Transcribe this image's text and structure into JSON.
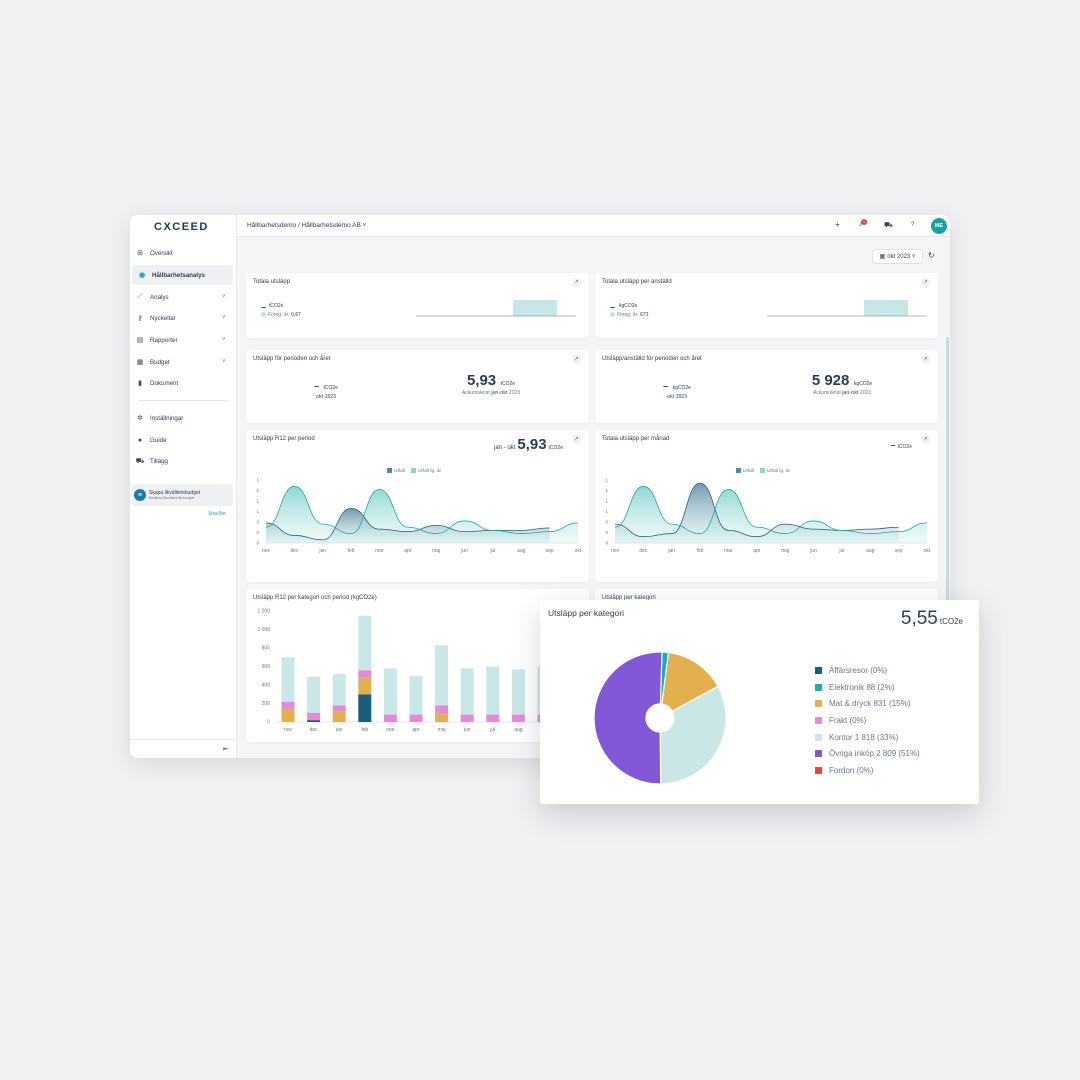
{
  "app": {
    "logo": "CXCEED",
    "breadcrumb": "Hållbarhetsdemo /  Hållbarhetsdemo AB ˅",
    "avatar": "ME",
    "notification_count": "1",
    "date_filter": "okt 2023 ˅"
  },
  "sidebar": {
    "items": [
      {
        "label": "Översikt",
        "icon": "grid-icon"
      },
      {
        "label": "Hållbarhetsanalys",
        "icon": "leaf-icon"
      },
      {
        "label": "Analys",
        "icon": "chart-line-icon"
      },
      {
        "label": "Nyckeltal",
        "icon": "key-icon"
      },
      {
        "label": "Rapporter",
        "icon": "report-icon"
      },
      {
        "label": "Budget",
        "icon": "budget-icon"
      },
      {
        "label": "Dokument",
        "icon": "document-icon"
      },
      {
        "label": "Inställningar",
        "icon": "gear-icon"
      },
      {
        "label": "Guide",
        "icon": "bulb-icon"
      },
      {
        "label": "Tillägg",
        "icon": "cart-icon"
      }
    ],
    "promo_title": "Skapa likviditetsbudget",
    "promo_subtitle": "Beräkna likviditet från budget",
    "more_link": "Visa fler"
  },
  "cards": {
    "total": {
      "title": "Totala utsläpp",
      "value": "–",
      "unit": "tCO2e",
      "prev_label": "Föreg. år:",
      "prev_value": "0,67"
    },
    "per_employee": {
      "title": "Totala utsläpp per anställd",
      "value": "–",
      "unit": "kgCO2e",
      "prev_label": "Föreg. år:",
      "prev_value": "673"
    },
    "period_year": {
      "title": "Utsläpp för perioden och året",
      "left_value": "–",
      "left_unit": "tCO2e",
      "left_label": "okt 2023",
      "right_value": "5,93",
      "right_unit": "tCO2e",
      "right_label_pre": "Ackumulerat",
      "right_label_bold": "jan-okt",
      "right_label_year": "2023"
    },
    "period_year_emp": {
      "title": "Utsläpp/anställd för perioden och året",
      "left_value": "–",
      "left_unit": "kgCO2e",
      "left_label": "okt 2023",
      "right_value": "5 928",
      "right_unit": "kgCO2e",
      "right_label_pre": "Ackumulerat",
      "right_label_bold": "jan-okt",
      "right_label_year": "2023"
    },
    "r12": {
      "title": "Utsläpp R12 per period",
      "range": "jan - okt",
      "value": "5,93",
      "unit": "tCO2e"
    },
    "monthly": {
      "title": "Totala utsläpp per månad",
      "value": "–",
      "unit": "tCO2e"
    },
    "bar": {
      "title": "Utsläpp R12 per kategori och period (kgCO2e)"
    },
    "cat_small": {
      "title": "Utsläpp per kategori"
    }
  },
  "colors": {
    "utfall": "#4f8aa8",
    "utfall_fg": "#8fd4d0",
    "accent": "#16a3a3"
  },
  "chart_data": [
    {
      "type": "area",
      "title": "Utsläpp R12 per period",
      "categories": [
        "nov",
        "dec",
        "jan",
        "feb",
        "mar",
        "apr",
        "maj",
        "jun",
        "jul",
        "aug",
        "sep",
        "okt"
      ],
      "yticks": [
        "0",
        "0",
        "0",
        "1",
        "1",
        "1",
        "1"
      ],
      "legend": [
        "Utfall",
        "Utfall fg. år"
      ],
      "legend_position": "top-center"
    },
    {
      "type": "area",
      "title": "Totala utsläpp per månad",
      "categories": [
        "nov",
        "dec",
        "jan",
        "feb",
        "mar",
        "apr",
        "maj",
        "jun",
        "jul",
        "aug",
        "sep",
        "okt"
      ],
      "yticks": [
        "0",
        "0",
        "0",
        "1",
        "1",
        "1",
        "1"
      ],
      "legend": [
        "Utfall",
        "Utfall fg. år"
      ],
      "legend_position": "top-center"
    },
    {
      "type": "bar",
      "title": "Utsläpp R12 per kategori och period (kgCO2e)",
      "categories": [
        "nov",
        "dec",
        "jan",
        "feb",
        "mar",
        "apr",
        "maj",
        "jun",
        "jul",
        "aug",
        "sep"
      ],
      "ylim": [
        0,
        1200
      ],
      "yticks": [
        "0",
        "200",
        "400",
        "600",
        "800",
        "1 000",
        "1 200"
      ],
      "series": [
        {
          "name": "Affärsresor",
          "color": "#1b5e7a",
          "values": [
            0,
            20,
            0,
            300,
            0,
            0,
            0,
            0,
            0,
            0,
            0
          ]
        },
        {
          "name": "Mat & dryck",
          "color": "#e2b04f",
          "values": [
            140,
            0,
            110,
            180,
            0,
            0,
            90,
            0,
            0,
            0,
            0
          ]
        },
        {
          "name": "Frakt",
          "color": "#e889d8",
          "values": [
            80,
            80,
            70,
            80,
            80,
            80,
            90,
            80,
            80,
            80,
            80
          ]
        },
        {
          "name": "Kontor",
          "color": "#c8e7e6",
          "values": [
            480,
            390,
            340,
            590,
            500,
            420,
            650,
            500,
            520,
            490,
            520
          ]
        }
      ]
    },
    {
      "type": "pie",
      "title": "Utsläpp per kategori",
      "total": "5,55",
      "total_unit": "tCO2e",
      "slices": [
        {
          "label": "Affärsresor (0%)",
          "value": 0,
          "color": "#1b5e7a"
        },
        {
          "label": "Elektronik 88 (2%)",
          "value": 88,
          "color": "#16b0b0"
        },
        {
          "label": "Mat & dryck 831 (15%)",
          "value": 831,
          "color": "#e2b04f"
        },
        {
          "label": "Frakt (0%)",
          "value": 0,
          "color": "#e889d8"
        },
        {
          "label": "Kontor 1 818 (33%)",
          "value": 1818,
          "color": "#c8e7e6"
        },
        {
          "label": "Övriga inköp 2 809 (51%)",
          "value": 2809,
          "color": "#8257d8"
        },
        {
          "label": "Fordon (0%)",
          "value": 0,
          "color": "#e24a3f"
        }
      ]
    }
  ]
}
